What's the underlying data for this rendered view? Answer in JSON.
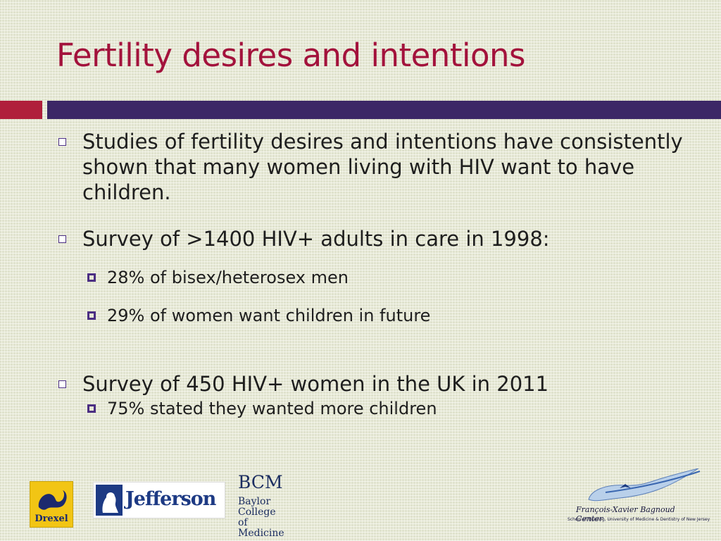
{
  "slide": {
    "title": "Fertility desires and intentions",
    "bullets": [
      {
        "text": "Studies of fertility desires and intentions have consistently shown that many women living with HIV want to have children.",
        "sub": []
      },
      {
        "text": "Survey of >1400 HIV+ adults in care in 1998:",
        "sub": [
          "28% of bisex/heterosex men",
          "29% of women want children in future"
        ]
      },
      {
        "text": "Survey of 450 HIV+ women in the UK in 2011",
        "sub": [
          "75% stated they wanted more children"
        ]
      }
    ]
  },
  "logos": {
    "drexel": "Drexel",
    "jefferson": "Jefferson",
    "bcm": {
      "mark": "BCM",
      "line1": "Baylor",
      "line2": "College of",
      "line3": "Medicine"
    },
    "fxb": {
      "title": "François-Xavier Bagnoud Center",
      "subtitle": "School of Nursing, University of Medicine & Dentistry of New Jersey"
    }
  },
  "colors": {
    "title": "#a3123c",
    "accent_red": "#b01f3b",
    "accent_purple": "#3c2766",
    "bullet": "#4b2e83"
  }
}
